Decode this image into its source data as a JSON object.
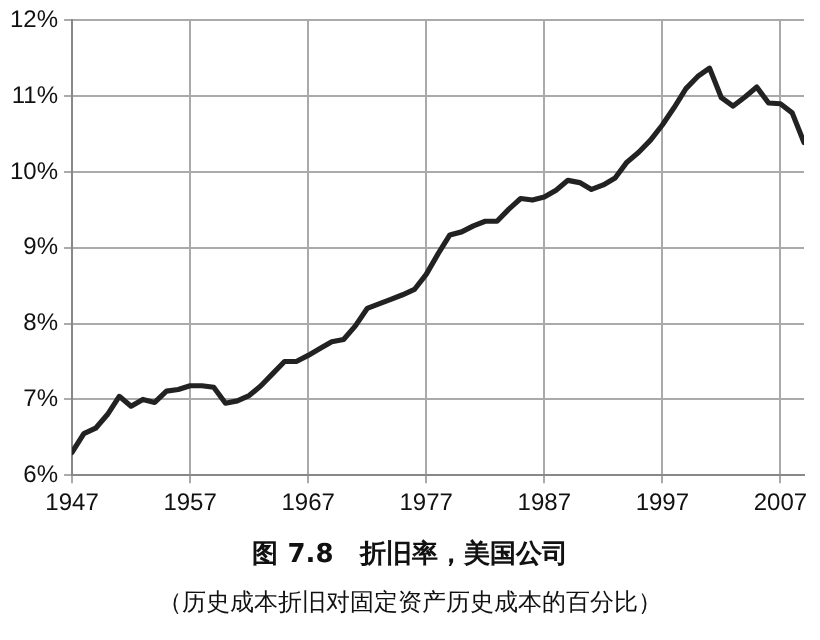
{
  "chart_data": {
    "type": "line",
    "title": "图 7.8　折旧率，美国公司",
    "subtitle": "（历史成本折旧对固定资产历史成本的百分比）",
    "x": [
      1947,
      1948,
      1949,
      1950,
      1951,
      1952,
      1953,
      1954,
      1955,
      1956,
      1957,
      1958,
      1959,
      1960,
      1961,
      1962,
      1963,
      1964,
      1965,
      1966,
      1967,
      1968,
      1969,
      1970,
      1971,
      1972,
      1973,
      1974,
      1975,
      1976,
      1977,
      1978,
      1979,
      1980,
      1981,
      1982,
      1983,
      1984,
      1985,
      1986,
      1987,
      1988,
      1989,
      1990,
      1991,
      1992,
      1993,
      1994,
      1995,
      1996,
      1997,
      1998,
      1999,
      2000,
      2001,
      2002,
      2003,
      2004,
      2005,
      2006,
      2007,
      2008,
      2009
    ],
    "series": [
      {
        "color": "#222222",
        "values": [
          6.3,
          6.55,
          6.62,
          6.8,
          7.04,
          6.91,
          7.0,
          6.96,
          7.11,
          7.13,
          7.18,
          7.18,
          7.16,
          6.95,
          6.98,
          7.05,
          7.18,
          7.34,
          7.5,
          7.5,
          7.58,
          7.67,
          7.76,
          7.79,
          7.97,
          8.2,
          8.26,
          8.32,
          8.38,
          8.45,
          8.65,
          8.92,
          9.17,
          9.21,
          9.29,
          9.35,
          9.35,
          9.51,
          9.65,
          9.63,
          9.67,
          9.76,
          9.89,
          9.86,
          9.77,
          9.83,
          9.92,
          10.13,
          10.26,
          10.42,
          10.62,
          10.85,
          11.1,
          11.26,
          11.37,
          10.98,
          10.87,
          10.99,
          11.12,
          10.91,
          10.9,
          10.78,
          10.39
        ]
      }
    ],
    "xlim": [
      1947,
      2009
    ],
    "xticks": [
      1947,
      1957,
      1967,
      1977,
      1987,
      1997,
      2007
    ],
    "ylim": [
      6,
      12
    ],
    "yticks": [
      {
        "value": 6,
        "label": "6%"
      },
      {
        "value": 7,
        "label": "7%"
      },
      {
        "value": 8,
        "label": "8%"
      },
      {
        "value": 9,
        "label": "9%"
      },
      {
        "value": 10,
        "label": "10%"
      },
      {
        "value": 11,
        "label": "11%"
      },
      {
        "value": 12,
        "label": "12%"
      }
    ],
    "grid": true,
    "marker": "none",
    "line_style": "solid"
  }
}
